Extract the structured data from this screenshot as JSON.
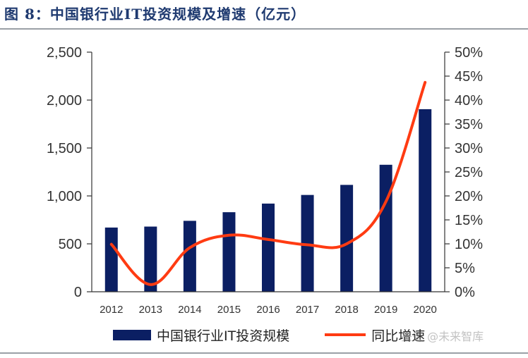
{
  "title": "图 8：中国银行业IT投资规模及增速（亿元）",
  "watermark": "头条 @未来智库",
  "colors": {
    "bar": "#0b1f63",
    "line": "#ff3b12",
    "axis": "#333333"
  },
  "chart_data": {
    "type": "bar",
    "categories": [
      "2012",
      "2013",
      "2014",
      "2015",
      "2016",
      "2017",
      "2018",
      "2019",
      "2020"
    ],
    "series": [
      {
        "name": "中国银行业IT投资规模",
        "type": "bar",
        "axis": "left",
        "values": [
          670,
          680,
          740,
          830,
          920,
          1010,
          1115,
          1325,
          1905
        ]
      },
      {
        "name": "同比增速",
        "type": "line",
        "axis": "right",
        "values": [
          0.099,
          0.015,
          0.092,
          0.118,
          0.109,
          0.098,
          0.1,
          0.188,
          0.437
        ]
      }
    ],
    "left_axis": {
      "ylim": [
        0,
        2500
      ],
      "ticks": [
        0,
        500,
        1000,
        1500,
        2000,
        2500
      ],
      "tick_labels": [
        "0",
        "500",
        "1,000",
        "1,500",
        "2,000",
        "2,500"
      ]
    },
    "right_axis": {
      "ylim": [
        0,
        0.5
      ],
      "ticks": [
        0,
        0.05,
        0.1,
        0.15,
        0.2,
        0.25,
        0.3,
        0.35,
        0.4,
        0.45,
        0.5
      ],
      "tick_labels": [
        "0%",
        "5%",
        "10%",
        "15%",
        "20%",
        "25%",
        "30%",
        "35%",
        "40%",
        "45%",
        "50%"
      ]
    },
    "grid": false,
    "legend_position": "bottom"
  }
}
